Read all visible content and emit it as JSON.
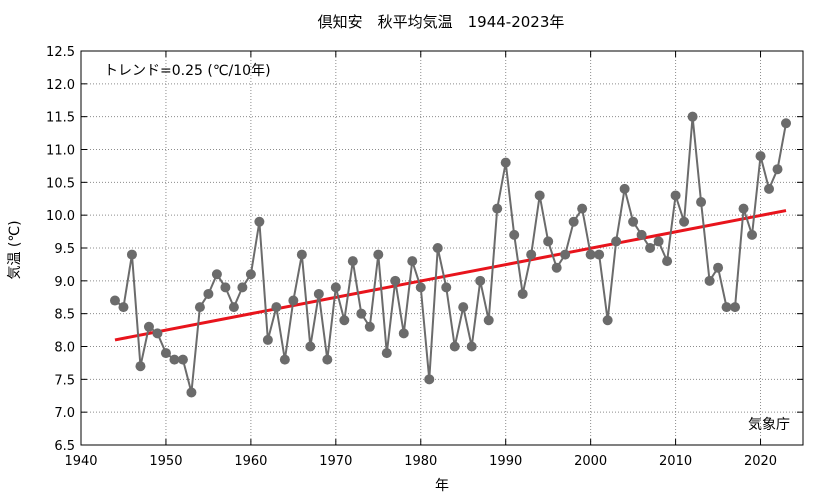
{
  "chart_data": {
    "type": "line",
    "title": "倶知安　秋平均気温　1944-2023年",
    "xlabel": "年",
    "ylabel": "気温 (℃)",
    "xlim": [
      1940,
      2025
    ],
    "ylim": [
      6.5,
      12.5
    ],
    "xticks": [
      1940,
      1950,
      1960,
      1970,
      1980,
      1990,
      2000,
      2010,
      2020
    ],
    "yticks": [
      "6.5",
      "7.0",
      "7.5",
      "8.0",
      "8.5",
      "9.0",
      "9.5",
      "10.0",
      "10.5",
      "11.0",
      "11.5",
      "12.0",
      "12.5"
    ],
    "grid": true,
    "trend_label": "トレンド=0.25 (℃/10年)",
    "source_label": "気象庁",
    "series_color": "#6b6b6b",
    "trend_color": "#e8141c",
    "trend": {
      "x": [
        1944,
        2023
      ],
      "y": [
        8.1,
        10.07
      ]
    },
    "x": [
      1944,
      1945,
      1946,
      1947,
      1948,
      1949,
      1950,
      1951,
      1952,
      1953,
      1954,
      1955,
      1956,
      1957,
      1958,
      1959,
      1960,
      1961,
      1962,
      1963,
      1964,
      1965,
      1966,
      1967,
      1968,
      1969,
      1970,
      1971,
      1972,
      1973,
      1974,
      1975,
      1976,
      1977,
      1978,
      1979,
      1980,
      1981,
      1982,
      1983,
      1984,
      1985,
      1986,
      1987,
      1988,
      1989,
      1990,
      1991,
      1992,
      1993,
      1994,
      1995,
      1996,
      1997,
      1998,
      1999,
      2000,
      2001,
      2002,
      2003,
      2004,
      2005,
      2006,
      2007,
      2008,
      2009,
      2010,
      2011,
      2012,
      2013,
      2014,
      2015,
      2016,
      2017,
      2018,
      2019,
      2020,
      2021,
      2022,
      2023
    ],
    "y": [
      8.7,
      8.6,
      9.4,
      7.7,
      8.3,
      8.2,
      7.9,
      7.8,
      7.8,
      7.3,
      8.6,
      8.8,
      9.1,
      8.9,
      8.6,
      8.9,
      9.1,
      9.9,
      8.1,
      8.6,
      7.8,
      8.7,
      9.4,
      8.0,
      8.8,
      7.8,
      8.9,
      8.4,
      9.3,
      8.5,
      8.3,
      9.4,
      7.9,
      9.0,
      8.2,
      9.3,
      8.9,
      7.5,
      9.5,
      8.9,
      8.0,
      8.6,
      8.0,
      9.0,
      8.4,
      10.1,
      10.8,
      9.7,
      8.8,
      9.4,
      10.3,
      9.6,
      9.2,
      9.4,
      9.9,
      10.1,
      9.4,
      9.4,
      8.4,
      9.6,
      10.4,
      9.9,
      9.7,
      9.5,
      9.6,
      9.3,
      10.3,
      9.9,
      11.5,
      10.2,
      9.0,
      9.2,
      8.6,
      8.6,
      10.1,
      9.7,
      10.9,
      10.4,
      10.7,
      11.4
    ]
  }
}
